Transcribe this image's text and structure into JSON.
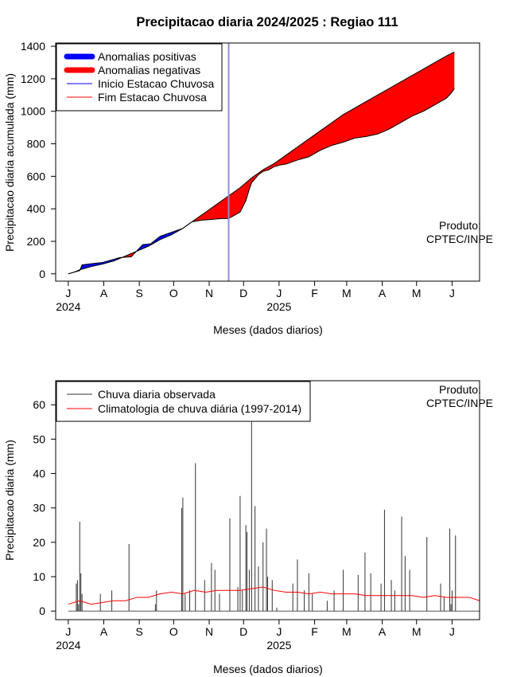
{
  "title": "Precipitacao diaria 2024/2025 : Regiao 111",
  "watermark": {
    "line1": "Produto:",
    "line2": "CPTEC/INPE"
  },
  "chart_data": [
    {
      "type": "area",
      "ylabel": "Precipitacao diaria acumulada (mm)",
      "xlabel": "Meses (dados diarios)",
      "ylim": [
        -45,
        1420
      ],
      "xlim_days": [
        -11,
        359
      ],
      "yticks": [
        0,
        200,
        400,
        600,
        800,
        1000,
        1200,
        1400
      ],
      "month_ticks": [
        "J",
        "A",
        "S",
        "O",
        "N",
        "D",
        "J",
        "F",
        "M",
        "A",
        "M",
        "J"
      ],
      "month_days": [
        0,
        31,
        62,
        92,
        123,
        153,
        184,
        215,
        243,
        274,
        304,
        335
      ],
      "year_labels": [
        {
          "text": "2024",
          "day": 0
        },
        {
          "text": "2025",
          "day": 184
        }
      ],
      "legend": {
        "position": "top-left",
        "entries": [
          {
            "label": "Anomalias positivas",
            "color": "#0000ff",
            "style": "thick"
          },
          {
            "label": "Anomalias negativas",
            "color": "#ff0000",
            "style": "thick"
          },
          {
            "label": "Inicio Estacao Chuvosa",
            "color": "#0000ff",
            "style": "thin"
          },
          {
            "label": "Fim Estacao Chuvosa",
            "color": "#ff0000",
            "style": "thin"
          }
        ]
      },
      "rainy_season_start_day": 140,
      "series": [
        {
          "name": "Observada acumulada",
          "day": [
            0,
            5,
            10,
            12,
            20,
            30,
            40,
            45,
            55,
            65,
            72,
            80,
            90,
            100,
            108,
            116,
            125,
            134,
            140,
            150,
            155,
            158,
            160,
            166,
            170,
            175,
            180,
            185,
            190,
            200,
            210,
            220,
            230,
            240,
            250,
            260,
            270,
            280,
            290,
            300,
            310,
            320,
            330,
            334,
            336,
            337
          ],
          "values": [
            0,
            10,
            20,
            55,
            62,
            70,
            90,
            100,
            105,
            180,
            185,
            230,
            255,
            280,
            320,
            330,
            335,
            340,
            340,
            380,
            450,
            520,
            560,
            610,
            630,
            640,
            660,
            670,
            675,
            700,
            720,
            760,
            790,
            810,
            835,
            845,
            860,
            890,
            930,
            970,
            1000,
            1040,
            1080,
            1110,
            1130,
            1140
          ]
        },
        {
          "name": "Climatologia acumulada",
          "day": [
            0,
            5,
            10,
            20,
            30,
            40,
            50,
            60,
            70,
            80,
            90,
            100,
            110,
            120,
            130,
            140,
            150,
            155,
            160,
            170,
            180,
            190,
            200,
            210,
            220,
            230,
            240,
            250,
            260,
            270,
            280,
            290,
            300,
            310,
            320,
            330,
            337
          ],
          "values": [
            0,
            10,
            25,
            45,
            60,
            80,
            110,
            140,
            170,
            210,
            240,
            280,
            330,
            380,
            430,
            480,
            530,
            560,
            590,
            640,
            680,
            730,
            780,
            830,
            880,
            930,
            980,
            1020,
            1060,
            1100,
            1140,
            1180,
            1220,
            1260,
            1300,
            1340,
            1365
          ]
        }
      ]
    },
    {
      "type": "line",
      "ylabel": "Precipitacao diaria (mm)",
      "xlabel": "Meses (dados diarios)",
      "ylim": [
        -2.5,
        67
      ],
      "xlim_days": [
        -11,
        359
      ],
      "yticks": [
        0,
        10,
        20,
        30,
        40,
        50,
        60
      ],
      "month_ticks": [
        "J",
        "A",
        "S",
        "O",
        "N",
        "D",
        "J",
        "F",
        "M",
        "A",
        "M",
        "J"
      ],
      "month_days": [
        0,
        31,
        62,
        92,
        123,
        153,
        184,
        215,
        243,
        274,
        304,
        335
      ],
      "year_labels": [
        {
          "text": "2024",
          "day": 0
        },
        {
          "text": "2025",
          "day": 184
        }
      ],
      "legend": {
        "position": "top-left",
        "entries": [
          {
            "label": "Chuva diaria observada",
            "color": "#333333",
            "style": "thin"
          },
          {
            "label": "Climatologia de chuva diária (1997-2014)",
            "color": "#ff0000",
            "style": "thin"
          }
        ]
      },
      "series": [
        {
          "name": "Chuva diaria observada",
          "style": "bars",
          "day": [
            7,
            8,
            9,
            10,
            11,
            12,
            28,
            38,
            53,
            76,
            77,
            99,
            100,
            102,
            106,
            111,
            119,
            125,
            128,
            132,
            141,
            148,
            150,
            152,
            155,
            156,
            158,
            160,
            163,
            166,
            170,
            173,
            174,
            178,
            182,
            196,
            200,
            206,
            210,
            213,
            226,
            232,
            240,
            253,
            259,
            264,
            273,
            276,
            282,
            285,
            291,
            294,
            298,
            313,
            325,
            328,
            333,
            334,
            335,
            338
          ],
          "values": [
            8,
            9,
            2,
            26,
            11,
            5,
            5,
            6,
            19.5,
            2,
            6,
            30,
            33,
            5,
            6,
            43,
            9,
            14,
            12,
            5,
            27,
            7,
            33.5,
            6,
            25,
            23,
            12,
            55,
            30.5,
            13,
            20,
            24,
            10,
            9,
            1,
            8,
            15,
            6,
            11,
            5,
            3,
            6,
            12,
            10.5,
            17,
            11,
            8,
            29.5,
            9,
            6,
            27.5,
            16,
            12,
            21.5,
            8,
            4,
            24,
            2,
            6,
            22
          ]
        },
        {
          "name": "Climatologia de chuva diária (1997-2014)",
          "style": "line",
          "day": [
            0,
            10,
            20,
            30,
            40,
            50,
            60,
            70,
            80,
            90,
            100,
            110,
            120,
            130,
            140,
            150,
            160,
            170,
            180,
            190,
            200,
            210,
            220,
            230,
            240,
            250,
            260,
            270,
            280,
            290,
            300,
            310,
            320,
            330,
            340,
            350,
            359
          ],
          "values": [
            2,
            3,
            2,
            2.5,
            3,
            3,
            4,
            4,
            5,
            5.5,
            5,
            6,
            5.5,
            6,
            6,
            6,
            6.5,
            7,
            6,
            5.5,
            5.5,
            5,
            5.5,
            5,
            5,
            5,
            4.5,
            4.5,
            4.5,
            4.5,
            4.5,
            4,
            4.5,
            4,
            4,
            4,
            3
          ]
        }
      ]
    }
  ]
}
